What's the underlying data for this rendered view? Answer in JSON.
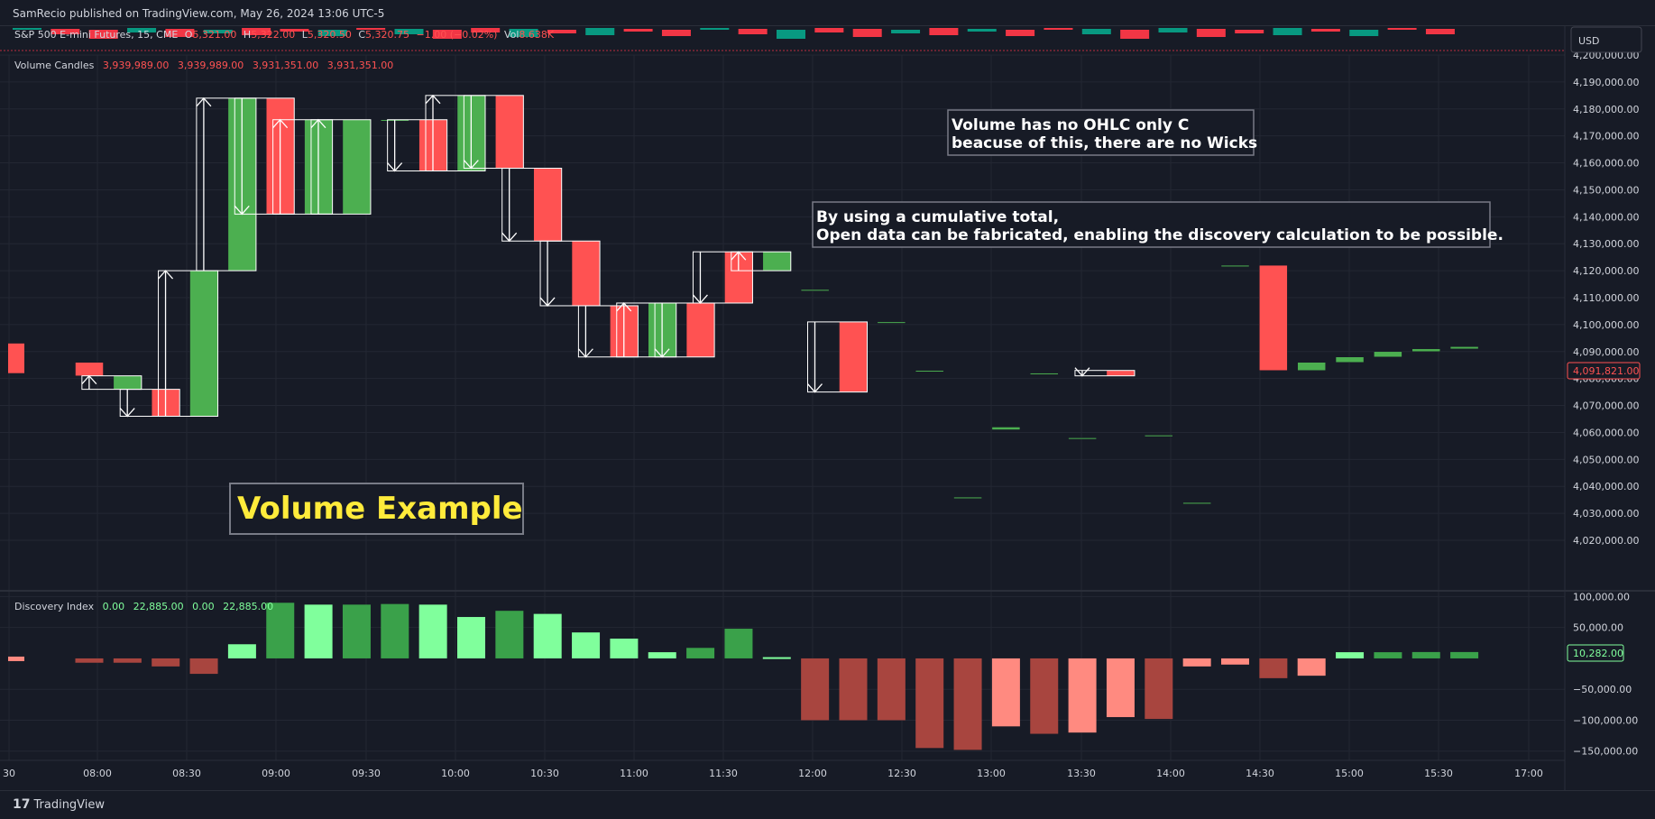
{
  "header": {
    "publish_line": "SamRecio published on TradingView.com, May 26, 2024 13:06 UTC-5"
  },
  "legend": {
    "symbol": "S&P 500 E-mini Futures, 15, CME",
    "o_label": "O",
    "o_value": "5,321.00",
    "h_label": "H",
    "h_value": "5,322.00",
    "l_label": "L",
    "l_value": "5,320.50",
    "c_label": "C",
    "c_value": "5,320.75",
    "change": "−1.00 (−0.02%)",
    "vol_label": "Vol",
    "vol_value": "8.638K",
    "currency": "USD"
  },
  "volume_pane": {
    "title": "Volume Candles",
    "values": [
      "3,939,989.00",
      "3,939,989.00",
      "3,931,351.00",
      "3,931,351.00"
    ],
    "last_value": "4,091,821.00"
  },
  "discovery_pane": {
    "title": "Discovery Index",
    "values": [
      "0.00",
      "22,885.00",
      "0.00",
      "22,885.00"
    ],
    "last_value": "10,282.00"
  },
  "annotations": {
    "title": "Volume Example",
    "note1_line1": "Volume has no OHLC only C",
    "note1_line2": "beacuse of this, there are no Wicks",
    "note2_line1": "By using a cumulative total,",
    "note2_line2": "Open data can be fabricated, enabling the discovery calculation to be possible."
  },
  "colors": {
    "up": "#4caf50",
    "down": "#ff5252",
    "up_light": "#80ff9c",
    "up_dark": "#3aa14a",
    "down_light": "#ff8a80",
    "down_dark": "#a8453f",
    "background": "#171b26",
    "grid": "#232733",
    "title_text": "#ffeb3b"
  },
  "footer": {
    "brand": "TradingView"
  },
  "chart_data": [
    {
      "type": "candlestick",
      "title": "Volume Candles",
      "x": [
        "08:00",
        "08:15",
        "08:30",
        "08:45",
        "09:00",
        "09:15",
        "09:30",
        "09:45",
        "10:00",
        "10:15",
        "10:30",
        "10:45",
        "11:00",
        "11:15",
        "11:30",
        "11:45",
        "12:00",
        "12:15",
        "12:30",
        "12:45",
        "13:00",
        "13:15",
        "13:30",
        "13:45",
        "14:00",
        "14:15",
        "14:30",
        "14:45",
        "15:00",
        "15:15",
        "15:30",
        "15:45",
        "16:00",
        "16:15",
        "16:30",
        "16:45",
        "17:00"
      ],
      "open": [
        4086000,
        4076000,
        4076000,
        4066000,
        4120000,
        4184000,
        4141000,
        4141000,
        4176000,
        4176000,
        4157000,
        4185000,
        4158000,
        4131000,
        4107000,
        4088000,
        4108000,
        4127000,
        4120000,
        4113000,
        4101000,
        4101000,
        4083000,
        4036000,
        4061000,
        4082000,
        4058000,
        4083000,
        4059000,
        4034000,
        4122000,
        4122000,
        4083000,
        4086000,
        4088000,
        4090000,
        4091000
      ],
      "close": [
        4081000,
        4081000,
        4066000,
        4120000,
        4184000,
        4141000,
        4176000,
        4176000,
        4176000,
        4157000,
        4185000,
        4158000,
        4131000,
        4107000,
        4088000,
        4108000,
        4088000,
        4108000,
        4127000,
        4113000,
        4075000,
        4101000,
        4083000,
        4036000,
        4062000,
        4082000,
        4058000,
        4081000,
        4059000,
        4034000,
        4122000,
        4083000,
        4086000,
        4088000,
        4090000,
        4091000,
        4091821
      ],
      "ylim": [
        4020000,
        4200000
      ],
      "y_ticks": [
        4020000,
        4030000,
        4040000,
        4050000,
        4060000,
        4070000,
        4080000,
        4090000,
        4100000,
        4110000,
        4120000,
        4130000,
        4140000,
        4150000,
        4160000,
        4170000,
        4180000,
        4190000,
        4200000
      ]
    },
    {
      "type": "bar",
      "title": "Discovery Index",
      "x": [
        "08:00",
        "08:15",
        "08:30",
        "08:45",
        "09:00",
        "09:15",
        "09:30",
        "09:45",
        "10:00",
        "10:15",
        "10:30",
        "10:45",
        "11:00",
        "11:15",
        "11:30",
        "11:45",
        "12:00",
        "12:15",
        "12:30",
        "12:45",
        "13:00",
        "13:15",
        "13:30",
        "13:45",
        "14:00",
        "14:15",
        "14:30",
        "14:45",
        "15:00",
        "15:15",
        "15:30",
        "15:45",
        "16:00",
        "16:15",
        "16:30",
        "16:45",
        "17:00"
      ],
      "values": [
        -7000,
        -7000,
        -13000,
        -25000,
        22885,
        90000,
        87000,
        87000,
        88000,
        87000,
        67000,
        77000,
        72000,
        42000,
        32000,
        10000,
        17000,
        48000,
        2000,
        -100000,
        -100000,
        -100000,
        -145000,
        -148000,
        -110000,
        -122000,
        -120000,
        -95000,
        -98000,
        -13000,
        -10000,
        -32000,
        -28000,
        10000,
        10000,
        10282,
        10282
      ],
      "ylim": [
        -165000,
        105000
      ],
      "y_ticks": [
        100000,
        50000,
        -50000,
        -100000,
        -150000
      ]
    }
  ],
  "x_axis": {
    "tick_labels": [
      "30",
      "08:00",
      "08:30",
      "09:00",
      "09:30",
      "10:00",
      "10:30",
      "11:00",
      "11:30",
      "12:00",
      "12:30",
      "13:00",
      "13:30",
      "14:00",
      "14:30",
      "15:00",
      "15:30",
      "17:00"
    ]
  },
  "y_axis_volume_labels": [
    "4,200,000.00",
    "4,190,000.00",
    "4,180,000.00",
    "4,170,000.00",
    "4,160,000.00",
    "4,150,000.00",
    "4,140,000.00",
    "4,130,000.00",
    "4,120,000.00",
    "4,110,000.00",
    "4,100,000.00",
    "4,090,000.00",
    "4,080,000.00",
    "4,070,000.00",
    "4,060,000.00",
    "4,050,000.00",
    "4,040,000.00",
    "4,030,000.00",
    "4,020,000.00"
  ],
  "y_axis_discovery_labels": [
    "100,000.00",
    "50,000.00",
    "−50,000.00",
    "−100,000.00",
    "−150,000.00"
  ]
}
